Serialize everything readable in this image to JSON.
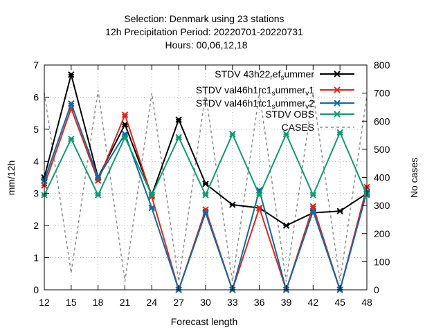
{
  "chart_data": {
    "type": "line",
    "title_lines": [
      "Selection: Denmark using    23 stations",
      "12h Precipitation    Period: 20220701-20220731",
      "Hours:  00,06,12,18"
    ],
    "xlabel": "Forecast length",
    "ylabel": "mm/12h",
    "y2label": "No cases",
    "x": [
      12,
      15,
      18,
      21,
      24,
      27,
      30,
      33,
      36,
      39,
      42,
      45,
      48
    ],
    "xlim": [
      12,
      48
    ],
    "ylim": [
      0,
      7
    ],
    "y2lim": [
      0,
      800
    ],
    "xticks": [
      "12",
      "15",
      "18",
      "21",
      "24",
      "27",
      "30",
      "33",
      "36",
      "39",
      "42",
      "45",
      "48"
    ],
    "yticks": [
      "0",
      "1",
      "2",
      "3",
      "4",
      "5",
      "6",
      "7"
    ],
    "y2ticks": [
      "0",
      "100",
      "200",
      "300",
      "400",
      "500",
      "600",
      "700",
      "800"
    ],
    "legend_position": "top-right",
    "series": [
      {
        "name": "STDV 43h22",
        "name_sub": "r",
        "name_mid": "ef",
        "name_sub2": "s",
        "name_tail": "ummer",
        "color": "#000000",
        "axis": "y",
        "dash": "solid",
        "marker": "star",
        "values": [
          3.5,
          6.7,
          3.5,
          5.15,
          2.95,
          5.3,
          3.3,
          2.65,
          2.55,
          2.0,
          2.4,
          2.45,
          3.0
        ]
      },
      {
        "name": "STDV val46h1rc1",
        "name_sub": "s",
        "name_mid": "ummer",
        "name_sub2": "v",
        "name_tail": "1",
        "color": "#e0251b",
        "axis": "y",
        "dash": "solid",
        "marker": "star",
        "values": [
          3.25,
          5.65,
          3.4,
          5.45,
          2.9,
          0.0,
          2.5,
          0.0,
          2.55,
          0.0,
          2.6,
          0.0,
          3.2
        ]
      },
      {
        "name": "STDV val46h1rc1",
        "name_sub": "s",
        "name_mid": "ummer",
        "name_sub2": "v",
        "name_tail": "2",
        "color": "#0b6aa8",
        "axis": "y",
        "dash": "solid",
        "marker": "star",
        "values": [
          3.4,
          5.8,
          3.5,
          4.85,
          2.55,
          0.0,
          2.4,
          0.0,
          3.1,
          0.0,
          2.45,
          0.0,
          3.05
        ]
      },
      {
        "name": "STDV OBS",
        "color": "#0d9b72",
        "axis": "y",
        "dash": "solid",
        "marker": "star",
        "values": [
          2.95,
          4.7,
          2.95,
          4.75,
          2.95,
          4.75,
          2.95,
          4.85,
          2.95,
          4.85,
          2.95,
          4.9,
          2.95
        ]
      },
      {
        "name": "CASES",
        "color": "#8c8c8c",
        "axis": "y2",
        "dash": "dashed",
        "marker": "none",
        "values": [
          700,
          60,
          710,
          30,
          700,
          30,
          700,
          30,
          700,
          30,
          700,
          30,
          690
        ]
      }
    ]
  }
}
